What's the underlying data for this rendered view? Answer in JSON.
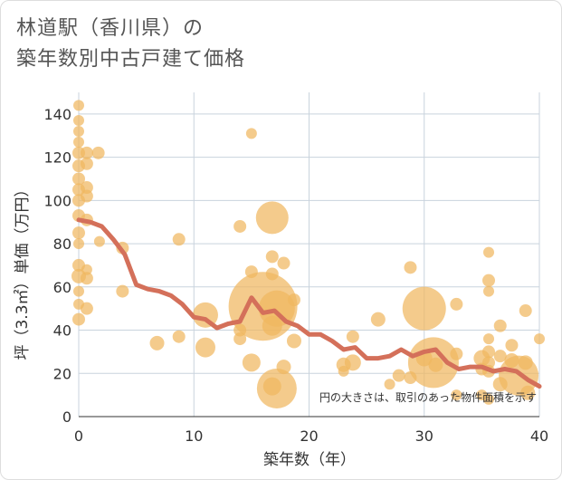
{
  "title_lines": [
    "林道駅（香川県）の",
    "築年数別中古戸建て価格"
  ],
  "chart_data": {
    "type": "scatter",
    "xlabel": "築年数（年）",
    "ylabel": "坪（3.3㎡）単価（万円）",
    "xlim": [
      0,
      40
    ],
    "ylim": [
      0,
      150
    ],
    "xticks": [
      0,
      10,
      20,
      30,
      40
    ],
    "yticks": [
      0,
      20,
      40,
      60,
      80,
      100,
      120,
      140
    ],
    "grid": true,
    "note": "円の大きさは、取引のあった物件面積を示す",
    "colors": {
      "bubble": "#f0b760",
      "line": "#d4705a",
      "grid": "#c9d3dd"
    },
    "bubbles": [
      {
        "x": 0,
        "y": 144,
        "r": 6
      },
      {
        "x": 0,
        "y": 137,
        "r": 6
      },
      {
        "x": 0,
        "y": 132,
        "r": 6
      },
      {
        "x": 0,
        "y": 127,
        "r": 6
      },
      {
        "x": 0,
        "y": 122,
        "r": 7
      },
      {
        "x": 0,
        "y": 116,
        "r": 7
      },
      {
        "x": 0,
        "y": 110,
        "r": 7
      },
      {
        "x": 0,
        "y": 105,
        "r": 7
      },
      {
        "x": 0,
        "y": 100,
        "r": 7
      },
      {
        "x": 0,
        "y": 93,
        "r": 7
      },
      {
        "x": 0,
        "y": 85,
        "r": 7
      },
      {
        "x": 0,
        "y": 80,
        "r": 6
      },
      {
        "x": 0,
        "y": 70,
        "r": 7
      },
      {
        "x": 0,
        "y": 65,
        "r": 8
      },
      {
        "x": 0,
        "y": 58,
        "r": 6
      },
      {
        "x": 0,
        "y": 52,
        "r": 6
      },
      {
        "x": 0,
        "y": 45,
        "r": 7
      },
      {
        "x": 0.7,
        "y": 122,
        "r": 7
      },
      {
        "x": 0.7,
        "y": 117,
        "r": 7
      },
      {
        "x": 0.7,
        "y": 106,
        "r": 7
      },
      {
        "x": 0.7,
        "y": 102,
        "r": 7
      },
      {
        "x": 0.7,
        "y": 91,
        "r": 7
      },
      {
        "x": 0.7,
        "y": 68,
        "r": 6
      },
      {
        "x": 0.7,
        "y": 64,
        "r": 7
      },
      {
        "x": 0.7,
        "y": 50,
        "r": 7
      },
      {
        "x": 1.7,
        "y": 122,
        "r": 7
      },
      {
        "x": 1.8,
        "y": 81,
        "r": 6
      },
      {
        "x": 3.8,
        "y": 78,
        "r": 7
      },
      {
        "x": 3.8,
        "y": 58,
        "r": 7
      },
      {
        "x": 6.8,
        "y": 34,
        "r": 8
      },
      {
        "x": 8.7,
        "y": 82,
        "r": 7
      },
      {
        "x": 8.7,
        "y": 37,
        "r": 7
      },
      {
        "x": 11,
        "y": 47,
        "r": 14
      },
      {
        "x": 11,
        "y": 32,
        "r": 11
      },
      {
        "x": 14,
        "y": 88,
        "r": 7
      },
      {
        "x": 14,
        "y": 40,
        "r": 7
      },
      {
        "x": 14,
        "y": 36,
        "r": 7
      },
      {
        "x": 15,
        "y": 131,
        "r": 6
      },
      {
        "x": 15,
        "y": 67,
        "r": 7
      },
      {
        "x": 15,
        "y": 25,
        "r": 10
      },
      {
        "x": 16,
        "y": 51,
        "r": 38
      },
      {
        "x": 16.8,
        "y": 92,
        "r": 18
      },
      {
        "x": 16.8,
        "y": 74,
        "r": 7
      },
      {
        "x": 16.8,
        "y": 66,
        "r": 7
      },
      {
        "x": 16.8,
        "y": 42,
        "r": 11
      },
      {
        "x": 16.8,
        "y": 14,
        "r": 10
      },
      {
        "x": 17.2,
        "y": 50,
        "r": 20
      },
      {
        "x": 17.2,
        "y": 13,
        "r": 22
      },
      {
        "x": 17.8,
        "y": 71,
        "r": 7
      },
      {
        "x": 17.8,
        "y": 23,
        "r": 8
      },
      {
        "x": 18.7,
        "y": 54,
        "r": 7
      },
      {
        "x": 18.7,
        "y": 35,
        "r": 8
      },
      {
        "x": 23,
        "y": 24,
        "r": 8
      },
      {
        "x": 23,
        "y": 21,
        "r": 6
      },
      {
        "x": 23.8,
        "y": 37,
        "r": 7
      },
      {
        "x": 23.8,
        "y": 25,
        "r": 9
      },
      {
        "x": 26,
        "y": 45,
        "r": 8
      },
      {
        "x": 27,
        "y": 15,
        "r": 6
      },
      {
        "x": 27.8,
        "y": 19,
        "r": 7
      },
      {
        "x": 28.8,
        "y": 69,
        "r": 7
      },
      {
        "x": 28.8,
        "y": 18,
        "r": 7
      },
      {
        "x": 30,
        "y": 50,
        "r": 24
      },
      {
        "x": 30,
        "y": 27,
        "r": 9
      },
      {
        "x": 30.8,
        "y": 25,
        "r": 28
      },
      {
        "x": 31,
        "y": 24,
        "r": 8
      },
      {
        "x": 32.8,
        "y": 52,
        "r": 7
      },
      {
        "x": 32.8,
        "y": 29,
        "r": 7
      },
      {
        "x": 32.8,
        "y": 10,
        "r": 6
      },
      {
        "x": 35,
        "y": 27,
        "r": 9
      },
      {
        "x": 35,
        "y": 22,
        "r": 7
      },
      {
        "x": 35,
        "y": 10,
        "r": 6
      },
      {
        "x": 35.6,
        "y": 76,
        "r": 6
      },
      {
        "x": 35.6,
        "y": 63,
        "r": 7
      },
      {
        "x": 35.6,
        "y": 58,
        "r": 6
      },
      {
        "x": 35.6,
        "y": 36,
        "r": 6
      },
      {
        "x": 35.6,
        "y": 30,
        "r": 7
      },
      {
        "x": 35.6,
        "y": 25,
        "r": 7
      },
      {
        "x": 35.6,
        "y": 21,
        "r": 7
      },
      {
        "x": 35.6,
        "y": 8,
        "r": 6
      },
      {
        "x": 36.6,
        "y": 42,
        "r": 7
      },
      {
        "x": 36.6,
        "y": 28,
        "r": 7
      },
      {
        "x": 36.6,
        "y": 15,
        "r": 8
      },
      {
        "x": 37.6,
        "y": 33,
        "r": 7
      },
      {
        "x": 37.6,
        "y": 26,
        "r": 8
      },
      {
        "x": 38.2,
        "y": 19,
        "r": 22
      },
      {
        "x": 38.8,
        "y": 49,
        "r": 7
      },
      {
        "x": 38.8,
        "y": 25,
        "r": 8
      },
      {
        "x": 39,
        "y": 11,
        "r": 8
      },
      {
        "x": 40,
        "y": 36,
        "r": 6
      }
    ],
    "trend": {
      "x": [
        0,
        1,
        2,
        3,
        4,
        5,
        6,
        7,
        8,
        9,
        10,
        11,
        12,
        13,
        14,
        15,
        16,
        17,
        18,
        19,
        20,
        21,
        22,
        23,
        24,
        25,
        26,
        27,
        28,
        29,
        30,
        31,
        32,
        33,
        34,
        35,
        36,
        37,
        38,
        39,
        40
      ],
      "y": [
        91,
        90,
        88,
        82,
        75,
        61,
        59,
        58,
        56,
        52,
        46,
        45,
        41,
        43,
        44,
        55,
        48,
        49,
        44,
        42,
        38,
        38,
        35,
        31,
        32,
        27,
        27,
        28,
        31,
        28,
        30,
        31,
        25,
        22,
        23,
        23,
        21,
        22,
        21,
        17,
        14
      ]
    }
  }
}
